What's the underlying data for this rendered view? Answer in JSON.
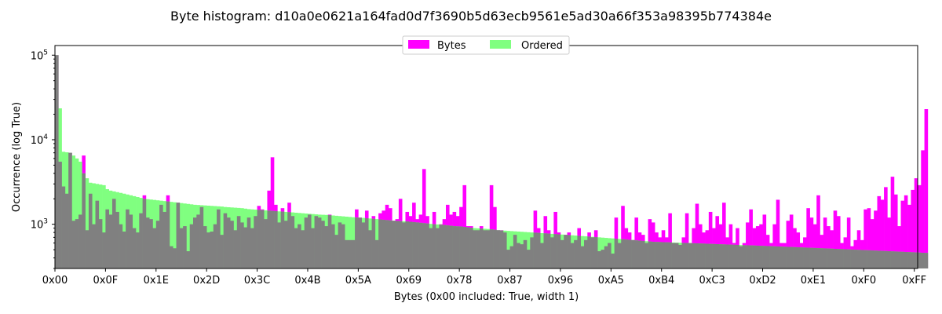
{
  "chart_data": {
    "type": "bar",
    "title": "Byte histogram: d10a0e0621a164fad0d7f3690b5d63ecb9561e5ad30a66f353a98395b774384e",
    "xlabel": "Bytes (0x00 included: True, width 1)",
    "ylabel": "Occurrence (log True)",
    "yscale": "log",
    "ylim": [
      300,
      130000
    ],
    "xlim": [
      0,
      256
    ],
    "bar_width": 1,
    "yticks": [
      {
        "value": 1000,
        "base": "10",
        "exp": "3"
      },
      {
        "value": 10000,
        "base": "10",
        "exp": "4"
      },
      {
        "value": 100000,
        "base": "10",
        "exp": "5"
      }
    ],
    "xticks": [
      {
        "value": 0,
        "label": "0x00"
      },
      {
        "value": 15,
        "label": "0x0F"
      },
      {
        "value": 30,
        "label": "0x1E"
      },
      {
        "value": 45,
        "label": "0x2D"
      },
      {
        "value": 60,
        "label": "0x3C"
      },
      {
        "value": 75,
        "label": "0x4B"
      },
      {
        "value": 90,
        "label": "0x5A"
      },
      {
        "value": 105,
        "label": "0x69"
      },
      {
        "value": 120,
        "label": "0x78"
      },
      {
        "value": 135,
        "label": "0x87"
      },
      {
        "value": 150,
        "label": "0x96"
      },
      {
        "value": 165,
        "label": "0xA5"
      },
      {
        "value": 180,
        "label": "0xB4"
      },
      {
        "value": 195,
        "label": "0xC3"
      },
      {
        "value": 210,
        "label": "0xD2"
      },
      {
        "value": 225,
        "label": "0xE1"
      },
      {
        "value": 240,
        "label": "0xF0"
      },
      {
        "value": 255,
        "label": "0xFF"
      }
    ],
    "legend": {
      "position": "upper-center",
      "entries": [
        "Bytes",
        "Ordered"
      ]
    },
    "series": [
      {
        "name": "Bytes",
        "color": "#ff00ff",
        "values": [
          100000,
          5500,
          2800,
          2300,
          7000,
          1100,
          1150,
          1300,
          6500,
          850,
          2300,
          1000,
          1900,
          1150,
          800,
          1500,
          1300,
          2000,
          1400,
          1000,
          820,
          1500,
          1300,
          900,
          800,
          1350,
          2200,
          1200,
          1150,
          900,
          1100,
          1700,
          1400,
          2200,
          550,
          520,
          1800,
          900,
          950,
          480,
          1000,
          1200,
          1300,
          1600,
          950,
          800,
          820,
          1000,
          1500,
          750,
          1350,
          1200,
          1100,
          850,
          1250,
          1050,
          920,
          1200,
          900,
          1250,
          1650,
          1500,
          1150,
          2500,
          6200,
          1700,
          1050,
          1550,
          1100,
          1800,
          1250,
          900,
          1000,
          850,
          1200,
          1300,
          900,
          1250,
          1200,
          1100,
          950,
          1300,
          1000,
          750,
          1050,
          1000,
          650,
          650,
          650,
          1500,
          1200,
          1050,
          1450,
          850,
          1250,
          650,
          1350,
          1450,
          1700,
          1550,
          1100,
          1150,
          2000,
          1050,
          1400,
          1250,
          1800,
          1150,
          1300,
          4500,
          1250,
          900,
          1400,
          900,
          1000,
          1150,
          1700,
          1300,
          1400,
          1250,
          1600,
          2900,
          950,
          950,
          850,
          850,
          950,
          850,
          850,
          2900,
          1600,
          850,
          850,
          800,
          500,
          550,
          750,
          600,
          580,
          650,
          500,
          700,
          1450,
          900,
          600,
          1250,
          850,
          700,
          1400,
          800,
          650,
          750,
          800,
          600,
          650,
          900,
          550,
          650,
          800,
          700,
          850,
          480,
          500,
          550,
          600,
          450,
          1200,
          600,
          1650,
          900,
          800,
          650,
          1200,
          800,
          750,
          600,
          1150,
          1050,
          800,
          700,
          850,
          700,
          1350,
          600,
          600,
          570,
          700,
          1350,
          600,
          900,
          1750,
          1000,
          800,
          850,
          1400,
          900,
          1250,
          1000,
          1800,
          700,
          1000,
          600,
          900,
          550,
          600,
          1050,
          1500,
          900,
          950,
          1000,
          1300,
          750,
          600,
          1000,
          1950,
          600,
          600,
          1100,
          1300,
          900,
          800,
          600,
          700,
          1550,
          1200,
          1000,
          2200,
          750,
          1200,
          950,
          850,
          1450,
          1250,
          600,
          700,
          1200,
          550,
          650,
          850,
          650,
          1500,
          1550,
          1150,
          1450,
          2150,
          1950,
          2750,
          1200,
          3650,
          2250,
          950,
          1900,
          2200,
          1700,
          2550,
          3500,
          2900,
          7500,
          23000
        ]
      },
      {
        "name": "Ordered",
        "color": "#80ff80",
        "values": [
          100000,
          23500,
          7200,
          7100,
          7000,
          6500,
          6000,
          5500,
          4000,
          3500,
          3100,
          3050,
          3000,
          2950,
          2900,
          2600,
          2500,
          2450,
          2400,
          2350,
          2300,
          2250,
          2200,
          2150,
          2100,
          2050,
          2000,
          1980,
          1960,
          1940,
          1920,
          1900,
          1880,
          1860,
          1840,
          1820,
          1800,
          1780,
          1760,
          1740,
          1720,
          1700,
          1690,
          1680,
          1670,
          1660,
          1650,
          1640,
          1630,
          1620,
          1600,
          1590,
          1580,
          1570,
          1560,
          1550,
          1530,
          1510,
          1500,
          1490,
          1480,
          1470,
          1460,
          1450,
          1440,
          1430,
          1420,
          1410,
          1400,
          1390,
          1380,
          1370,
          1360,
          1350,
          1340,
          1330,
          1320,
          1310,
          1300,
          1295,
          1290,
          1280,
          1270,
          1260,
          1250,
          1240,
          1230,
          1220,
          1210,
          1200,
          1195,
          1190,
          1180,
          1170,
          1160,
          1150,
          1140,
          1130,
          1120,
          1110,
          1100,
          1095,
          1090,
          1085,
          1080,
          1070,
          1060,
          1050,
          1040,
          1030,
          1020,
          1010,
          1000,
          995,
          990,
          980,
          970,
          960,
          950,
          945,
          940,
          930,
          920,
          910,
          900,
          895,
          890,
          885,
          880,
          870,
          860,
          850,
          845,
          840,
          835,
          830,
          825,
          820,
          815,
          810,
          805,
          800,
          795,
          790,
          785,
          780,
          775,
          770,
          765,
          760,
          755,
          750,
          745,
          740,
          735,
          730,
          725,
          720,
          715,
          710,
          705,
          700,
          695,
          690,
          685,
          680,
          675,
          670,
          665,
          660,
          655,
          650,
          645,
          640,
          635,
          630,
          625,
          620,
          618,
          616,
          614,
          612,
          610,
          608,
          606,
          604,
          602,
          600,
          598,
          596,
          594,
          592,
          590,
          588,
          586,
          584,
          582,
          580,
          578,
          576,
          574,
          572,
          570,
          568,
          566,
          564,
          562,
          560,
          558,
          556,
          554,
          552,
          550,
          548,
          546,
          544,
          542,
          540,
          538,
          536,
          534,
          532,
          530,
          528,
          526,
          524,
          522,
          520,
          518,
          516,
          514,
          512,
          510,
          508,
          506,
          504,
          502,
          500,
          498,
          496,
          494,
          492,
          490,
          488,
          486,
          484,
          482,
          480,
          478,
          476,
          474,
          472,
          470,
          468,
          466,
          464,
          462,
          460,
          458,
          456,
          454,
          452,
          450,
          448,
          446,
          444
        ]
      }
    ],
    "overlap_color": "#808080"
  }
}
